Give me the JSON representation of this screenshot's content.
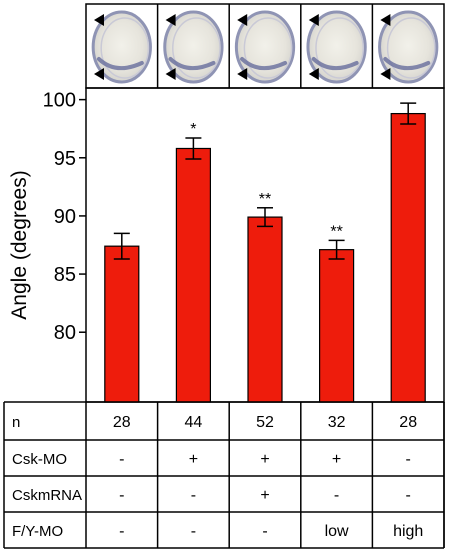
{
  "chart_data": {
    "type": "bar",
    "ylabel": "Angle (degrees)",
    "ylim": [
      74,
      101
    ],
    "yticks": [
      80,
      85,
      90,
      95,
      100
    ],
    "grid": false,
    "bar_color": "#ee1c0c",
    "values": [
      87.4,
      95.8,
      89.9,
      87.1,
      98.8
    ],
    "errors": [
      1.1,
      0.9,
      0.8,
      0.8,
      0.9
    ],
    "significance": [
      "",
      "*",
      "**",
      "**",
      ""
    ],
    "table": {
      "row_labels": [
        "n",
        "Csk-MO",
        "CskmRNA",
        "F/Y-MO"
      ],
      "rows": [
        [
          "28",
          "44",
          "52",
          "32",
          "28"
        ],
        [
          "-",
          "+",
          "+",
          "+",
          "-"
        ],
        [
          "-",
          "-",
          "+",
          "-",
          "-"
        ],
        [
          "-",
          "-",
          "-",
          "low",
          "high"
        ]
      ]
    }
  },
  "embryo_panels": 5
}
